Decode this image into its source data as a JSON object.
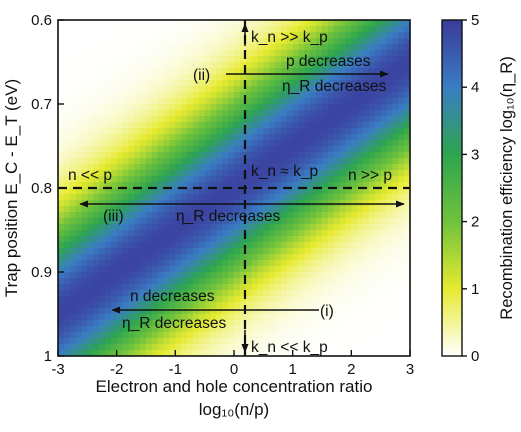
{
  "chart_data": {
    "type": "heatmap",
    "xlabel_line1": "Electron and hole concentration ratio",
    "xlabel_line2": "log₁₀(n/p)",
    "ylabel": "Trap position E_C - E_T (eV)",
    "colorbar_label": "Recombination efficiency log₁₀(η_R)",
    "xlim": [
      -3,
      3
    ],
    "ylim": [
      0.6,
      1.0
    ],
    "y_inverted": true,
    "clim": [
      0,
      5
    ],
    "x_ticks": [
      "-3",
      "-2",
      "-1",
      "0",
      "1",
      "2",
      "3"
    ],
    "y_ticks": [
      "0.6",
      "0.7",
      "0.8",
      "0.9",
      "1"
    ],
    "colorbar_ticks": [
      "0",
      "1",
      "2",
      "3",
      "4",
      "5"
    ],
    "colormap": [
      "#ffffff",
      "#e6ea2f",
      "#6fc23c",
      "#2ea54f",
      "#3a7dc4",
      "#3b3a9b"
    ],
    "ridge": {
      "y_at_x_min": 0.95,
      "y_at_x_max": 0.65,
      "peak": 4.85,
      "width": 0.08
    },
    "reference_lines": {
      "x": 0,
      "y": 0.8,
      "style": "dashed"
    },
    "annotations": {
      "ii_label": "(ii)",
      "p_decreases": "p decreases",
      "etaR_decreases_ii": "η_R decreases",
      "top_kn": "k_n >> k_p",
      "mid_kn": "k_n ≈ k_p",
      "bottom_kn": "k_n << k_p",
      "n_ll_p": "n << p",
      "n_gg_p": "n >> p",
      "iii_label": "(iii)",
      "etaR_decreases_iii": "η_R decreases",
      "i_label": "(i)",
      "n_decreases": "n decreases",
      "etaR_decreases_i": "η_R decreases"
    }
  }
}
